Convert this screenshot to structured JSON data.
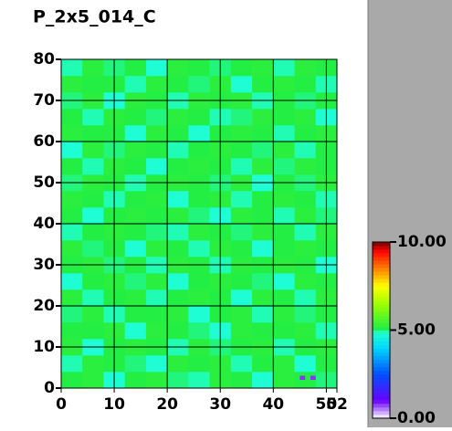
{
  "chart_data": {
    "type": "heatmap",
    "title": "P_2x5_014_C",
    "x_edges": [
      0,
      4,
      8,
      12,
      16,
      20,
      24,
      28,
      32,
      36,
      40,
      44,
      48,
      52
    ],
    "y_edges": [
      0,
      4,
      8,
      12,
      16,
      20,
      24,
      28,
      32,
      36,
      40,
      44,
      48,
      52,
      56,
      60,
      64,
      68,
      72,
      76,
      80
    ],
    "z": [
      [
        5.1,
        5.2,
        4.8,
        5.1,
        5.2,
        5.0,
        4.9,
        5.2,
        5.1,
        4.8,
        5.2,
        5.1,
        5.0
      ],
      [
        4.9,
        5.2,
        5.1,
        5.0,
        4.8,
        5.2,
        5.1,
        5.2,
        4.9,
        5.1,
        5.2,
        4.8,
        5.1
      ],
      [
        5.2,
        4.8,
        5.1,
        5.2,
        5.1,
        4.9,
        5.2,
        5.0,
        5.1,
        5.2,
        4.9,
        5.1,
        5.2
      ],
      [
        5.1,
        5.1,
        5.2,
        4.8,
        5.2,
        5.1,
        5.0,
        4.8,
        5.2,
        5.1,
        5.1,
        5.2,
        4.9
      ],
      [
        5.0,
        5.2,
        4.9,
        5.1,
        5.1,
        5.2,
        4.8,
        5.1,
        5.2,
        4.9,
        5.2,
        5.0,
        5.1
      ],
      [
        5.2,
        4.9,
        5.1,
        5.2,
        4.9,
        5.1,
        5.2,
        5.1,
        4.8,
        5.2,
        5.1,
        4.9,
        5.2
      ],
      [
        4.8,
        5.1,
        5.2,
        5.0,
        5.2,
        4.8,
        5.1,
        5.2,
        5.1,
        5.0,
        4.8,
        5.2,
        5.1
      ],
      [
        5.1,
        5.2,
        5.0,
        5.1,
        4.9,
        5.2,
        5.1,
        4.9,
        5.2,
        5.1,
        5.2,
        5.1,
        4.8
      ],
      [
        5.2,
        5.0,
        5.1,
        4.8,
        5.2,
        5.1,
        4.9,
        5.2,
        5.1,
        4.8,
        5.1,
        5.2,
        5.1
      ],
      [
        4.9,
        5.1,
        5.2,
        5.1,
        5.0,
        4.9,
        5.2,
        5.1,
        5.0,
        5.2,
        5.1,
        4.9,
        5.2
      ],
      [
        5.1,
        4.8,
        5.1,
        5.2,
        5.1,
        5.2,
        5.0,
        4.8,
        5.2,
        5.1,
        4.9,
        5.2,
        5.0
      ],
      [
        5.2,
        5.1,
        4.9,
        5.1,
        5.2,
        4.8,
        5.1,
        5.2,
        4.9,
        5.1,
        5.2,
        5.1,
        4.9
      ],
      [
        5.0,
        5.2,
        5.1,
        4.9,
        5.1,
        5.2,
        5.1,
        5.0,
        5.2,
        4.8,
        5.1,
        5.0,
        5.2
      ],
      [
        5.1,
        4.9,
        5.2,
        5.1,
        4.8,
        5.1,
        5.2,
        5.1,
        4.9,
        5.2,
        5.0,
        5.2,
        5.1
      ],
      [
        4.8,
        5.2,
        5.0,
        5.2,
        5.1,
        4.9,
        5.1,
        5.2,
        5.1,
        5.0,
        5.2,
        4.9,
        5.1
      ],
      [
        5.2,
        5.1,
        5.1,
        4.8,
        5.2,
        5.1,
        4.8,
        5.1,
        5.2,
        5.1,
        4.9,
        5.1,
        5.2
      ],
      [
        5.1,
        4.9,
        5.2,
        5.1,
        5.0,
        5.2,
        5.1,
        4.9,
        5.0,
        5.2,
        5.1,
        5.2,
        4.8
      ],
      [
        5.0,
        5.2,
        4.8,
        5.2,
        5.1,
        4.9,
        5.2,
        5.1,
        5.2,
        4.9,
        5.1,
        5.0,
        5.1
      ],
      [
        5.2,
        5.1,
        5.1,
        4.9,
        5.2,
        5.1,
        5.0,
        5.2,
        4.8,
        5.1,
        5.2,
        5.1,
        4.9
      ],
      [
        4.9,
        5.2,
        5.0,
        5.1,
        4.8,
        5.2,
        5.1,
        5.0,
        5.1,
        5.2,
        4.9,
        5.2,
        5.1
      ]
    ],
    "highlight_cells": [
      {
        "x": [
          45,
          46
        ],
        "y": [
          2,
          3
        ],
        "value": 0.8
      },
      {
        "x": [
          47,
          48
        ],
        "y": [
          2,
          3
        ],
        "value": 0.8
      }
    ],
    "xlim": [
      0,
      52
    ],
    "xticks": [
      0,
      10,
      20,
      30,
      40,
      50,
      52
    ],
    "ylim": [
      0,
      80
    ],
    "yticks": [
      0,
      10,
      20,
      30,
      40,
      50,
      60,
      70,
      80
    ],
    "zlim": [
      0,
      10
    ],
    "zticks": [
      {
        "value": 0,
        "label": "0.00"
      },
      {
        "value": 5,
        "label": "5.00"
      },
      {
        "value": 10,
        "label": "10.00"
      }
    ],
    "colorscale": [
      [
        0,
        "#ffffff"
      ],
      [
        1,
        "#6a00ff"
      ],
      [
        2.5,
        "#0050ff"
      ],
      [
        4,
        "#00d8ff"
      ],
      [
        4.85,
        "#20ffd0"
      ],
      [
        5.1,
        "#22ee44"
      ],
      [
        6.5,
        "#a0ff00"
      ],
      [
        7.5,
        "#ffff00"
      ],
      [
        8.5,
        "#ff8000"
      ],
      [
        9.5,
        "#ff0000"
      ],
      [
        10,
        "#700000"
      ]
    ],
    "grid": true
  }
}
